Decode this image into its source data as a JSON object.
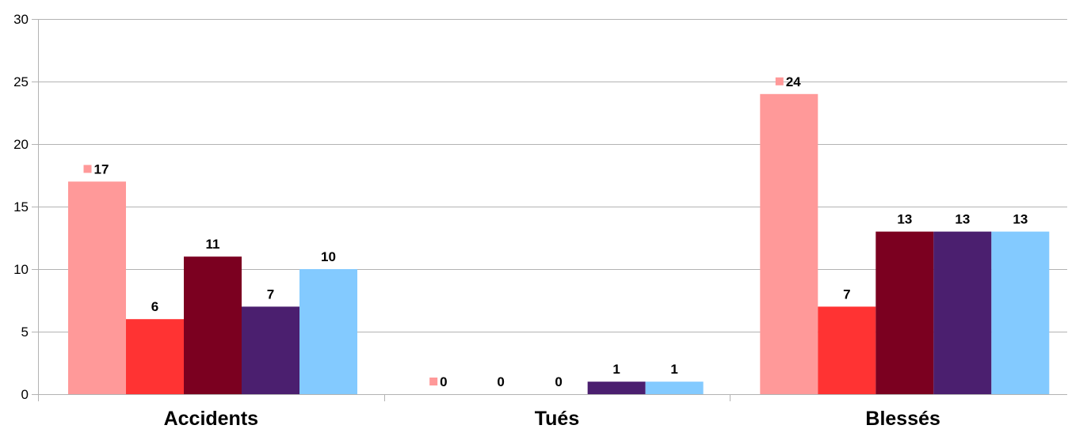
{
  "chart_data": {
    "type": "bar",
    "categories": [
      "Accidents",
      "Tués",
      "Blessés"
    ],
    "series": [
      {
        "color": "#ff9999",
        "values": [
          17,
          0,
          24
        ]
      },
      {
        "color": "#ff3333",
        "values": [
          6,
          0,
          7
        ]
      },
      {
        "color": "#7b0020",
        "values": [
          11,
          0,
          13
        ]
      },
      {
        "color": "#4b1f6f",
        "values": [
          7,
          1,
          13
        ]
      },
      {
        "color": "#83caff",
        "values": [
          10,
          1,
          13
        ]
      }
    ],
    "ylim": [
      0,
      30
    ],
    "yticks": [
      0,
      5,
      10,
      15,
      20,
      25,
      30
    ],
    "grid": true,
    "legend_key_series": 0
  }
}
